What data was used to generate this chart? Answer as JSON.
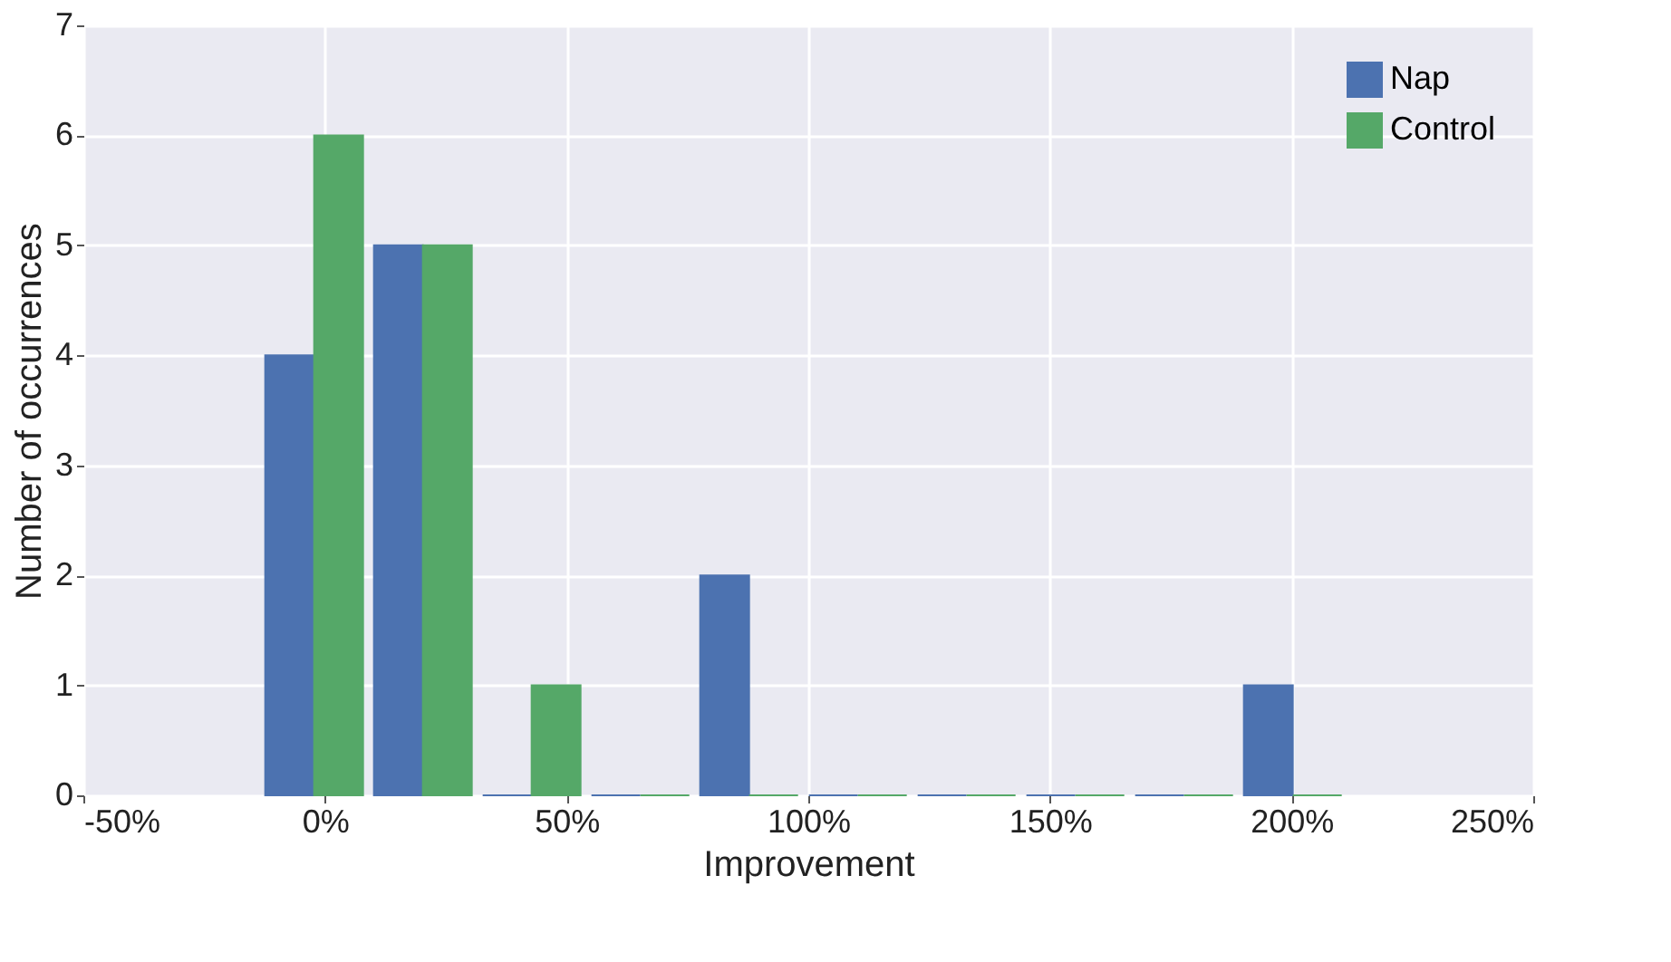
{
  "chart_data": {
    "type": "histogram",
    "xlabel": "Improvement",
    "ylabel": "Number of occurrences",
    "bins": [
      -13.5,
      9,
      31.5,
      54,
      76.5,
      99,
      121.5,
      144,
      166.5,
      189,
      211.5
    ],
    "series": [
      {
        "name": "Nap",
        "color": "#4c72b0",
        "values": [
          4,
          5,
          0,
          0,
          2,
          0,
          0,
          0,
          0,
          1
        ]
      },
      {
        "name": "Control",
        "color": "#55a868",
        "values": [
          6,
          5,
          1,
          0,
          0,
          0,
          0,
          0,
          0,
          0
        ]
      }
    ],
    "xlim": [
      -50,
      250
    ],
    "xticks": [
      {
        "value": -50,
        "label": "-50%"
      },
      {
        "value": 0,
        "label": "0%"
      },
      {
        "value": 50,
        "label": "50%"
      },
      {
        "value": 100,
        "label": "100%"
      },
      {
        "value": 150,
        "label": "150%"
      },
      {
        "value": 200,
        "label": "200%"
      },
      {
        "value": 250,
        "label": "250%"
      }
    ],
    "ylim": [
      0,
      7
    ],
    "yticks": [
      0,
      1,
      2,
      3,
      4,
      5,
      6,
      7
    ],
    "grid": true,
    "legend": "top right"
  }
}
